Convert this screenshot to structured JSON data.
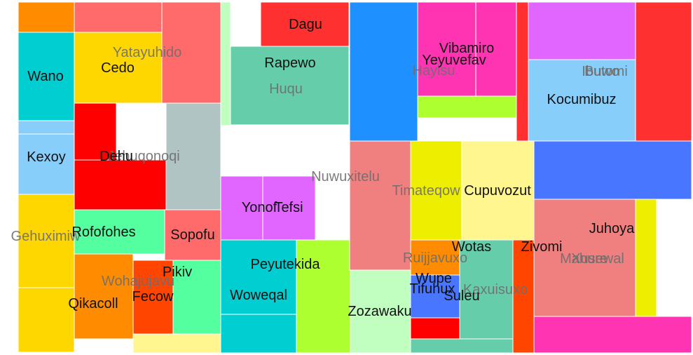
{
  "chart_data": {
    "type": "treemap",
    "groups": [
      {
        "name": "Gehuximiw",
        "children": [
          {
            "name": "",
            "color": "#ff8c00",
            "value": 2
          },
          {
            "name": "",
            "color": "#ff6a6a",
            "value": 3
          },
          {
            "name": "Wano",
            "color": "#00ced1",
            "value": 3
          },
          {
            "name": "Cedo",
            "color": "#ffd700",
            "value": 3
          },
          {
            "name": "",
            "color": "#ff6a6a",
            "value": 6
          },
          {
            "name": "",
            "color": "#87cefa",
            "value": 1
          },
          {
            "name": "Kexoy",
            "color": "#87cefa",
            "value": 3
          },
          {
            "name": "",
            "color": "#ff0000",
            "value": 2
          },
          {
            "name": "Dehu",
            "color": "#ff0000",
            "value": 3
          },
          {
            "name": "",
            "color": "#b0c4c4",
            "value": 4
          },
          {
            "name": "",
            "color": "#ffd700",
            "value": 5
          },
          {
            "name": "",
            "color": "#ffd700",
            "value": 3
          },
          {
            "name": "Rofofohes",
            "color": "#54ff9f",
            "value": 4
          },
          {
            "name": "Sopofu",
            "color": "#ff6a6a",
            "value": 2
          },
          {
            "name": "Qikacoll",
            "color": "#ff8c00",
            "value": 3
          },
          {
            "name": "Fecow",
            "color": "#ff4500",
            "value": 2
          },
          {
            "name": "Pikiv",
            "color": "#54ff9f",
            "value": 2
          },
          {
            "name": "",
            "color": "#fff68f",
            "value": 1
          }
        ]
      },
      {
        "name": "Yatayuhido",
        "children": []
      },
      {
        "name": "Wohajujavu",
        "children": []
      },
      {
        "name": "Jehuqonoqi",
        "children": []
      },
      {
        "name": "Huqu",
        "children": [
          {
            "name": "Dagu",
            "color": "#ff3030",
            "value": 2
          },
          {
            "name": "Rapewo",
            "color": "#66cdaa",
            "value": 3
          },
          {
            "name": "",
            "color": "#c1ffc1",
            "value": 3
          }
        ]
      },
      {
        "name": "Nuwuxitelu",
        "children": [
          {
            "name": "Yonof",
            "color": "#e066ff",
            "value": 2
          },
          {
            "name": "Tefsi",
            "color": "#e066ff",
            "value": 2
          },
          {
            "name": "Peyutekida",
            "color": "#00ced1",
            "value": 3
          },
          {
            "name": "Woweqal",
            "color": "#00ced1",
            "value": 2
          },
          {
            "name": "",
            "color": "#adff2f",
            "value": 3
          },
          {
            "name": "Zozawaku",
            "color": "#c1ffc1",
            "value": 2
          }
        ]
      },
      {
        "name": "Hayisu",
        "children": [
          {
            "name": "",
            "color": "#1e90ff",
            "value": 4
          },
          {
            "name": "Vibamiro",
            "color": "#ff34b3",
            "value": 3
          },
          {
            "name": "Yeyuvefav",
            "color": "#ff34b3",
            "value": 2
          },
          {
            "name": "",
            "color": "#adff2f",
            "value": 1
          },
          {
            "name": "",
            "color": "#ff3030",
            "value": 1
          }
        ]
      },
      {
        "name": "Buwo",
        "children": [
          {
            "name": "",
            "color": "#e066ff",
            "value": 3
          },
          {
            "name": "Kocumibuz",
            "color": "#87cefa",
            "value": 3
          },
          {
            "name": "",
            "color": "#ff3030",
            "value": 1
          }
        ]
      },
      {
        "name": "Ibutomi",
        "children": []
      },
      {
        "name": "Timateqow",
        "children": [
          {
            "name": "",
            "color": "#f08080",
            "value": 3
          },
          {
            "name": "",
            "color": "#eeee00",
            "value": 2
          },
          {
            "name": "Cupuvozut",
            "color": "#fff68f",
            "value": 3
          }
        ]
      },
      {
        "name": "Ruijjavuxo",
        "children": [
          {
            "name": "Wupe",
            "color": "#ff8c00",
            "value": 1
          },
          {
            "name": "Tifuhux",
            "color": "#4876ff",
            "value": 1
          },
          {
            "name": "",
            "color": "#ff0000",
            "value": 1
          },
          {
            "name": "Wotas",
            "color": "#66cdaa",
            "value": 3
          },
          {
            "name": "Suleu",
            "color": "#66cdaa",
            "value": 1
          }
        ]
      },
      {
        "name": "Kaxuisuxo",
        "children": [
          {
            "name": "Zivomi",
            "color": "#ff4500",
            "value": 1
          }
        ]
      },
      {
        "name": "Mahure",
        "children": [
          {
            "name": "",
            "color": "#4876ff",
            "value": 3
          },
          {
            "name": "Juhoya",
            "color": "#f08080",
            "value": 3
          },
          {
            "name": "",
            "color": "#eeee00",
            "value": 1
          },
          {
            "name": "",
            "color": "#ff34b3",
            "value": 3
          }
        ]
      },
      {
        "name": "Xusewal",
        "children": []
      }
    ]
  }
}
